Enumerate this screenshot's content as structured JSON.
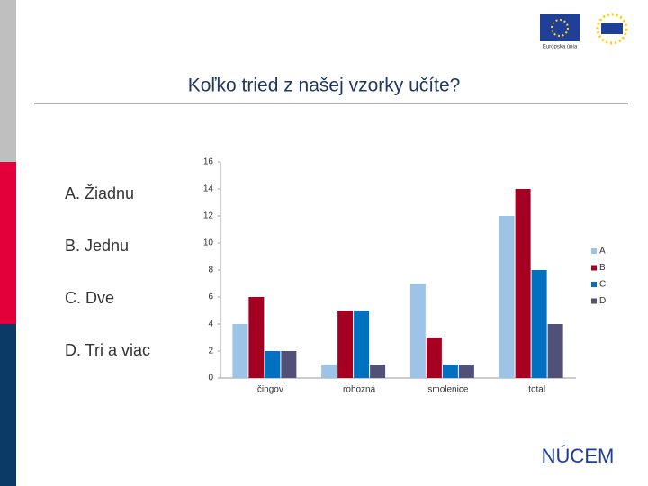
{
  "slide": {
    "options": [
      "A. Žiadnu",
      "B. Jednu",
      "C. Dve",
      "D. Tri a viac"
    ],
    "eu_label": "Európska únia",
    "logo_text": "NÚCEM"
  },
  "chart_data": {
    "type": "bar",
    "title": "Koľko tried z našej vzorky učíte?",
    "categories": [
      "čingov",
      "rohozná",
      "smolenice",
      "total"
    ],
    "series": [
      {
        "name": "A",
        "color": "#9dc3e6",
        "values": [
          4,
          1,
          7,
          12
        ]
      },
      {
        "name": "B",
        "color": "#a50021",
        "values": [
          6,
          5,
          3,
          14
        ]
      },
      {
        "name": "C",
        "color": "#0070c0",
        "values": [
          2,
          5,
          1,
          8
        ]
      },
      {
        "name": "D",
        "color": "#505078",
        "values": [
          2,
          1,
          1,
          4
        ]
      }
    ],
    "ylim": [
      0,
      16
    ],
    "yticks": [
      0,
      2,
      4,
      6,
      8,
      10,
      12,
      14,
      16
    ],
    "grid": false,
    "legend": "right"
  }
}
